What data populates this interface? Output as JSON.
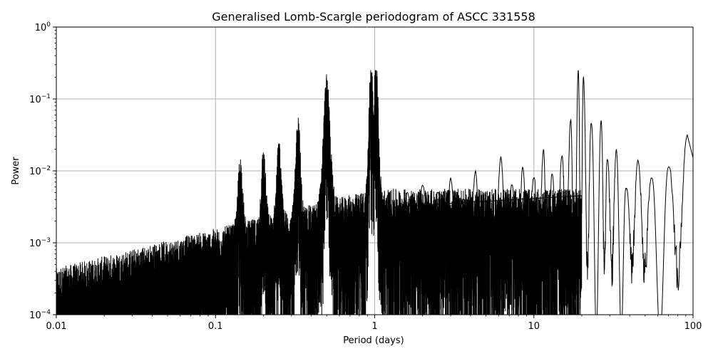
{
  "chart_data": {
    "type": "line",
    "title": "Generalised Lomb-Scargle periodogram of ASCC 331558",
    "xlabel": "Period (days)",
    "ylabel": "Power",
    "xscale": "log",
    "yscale": "log",
    "xlim": [
      0.01,
      100
    ],
    "ylim": [
      0.0001,
      1
    ],
    "grid": true,
    "line_color": "#000000",
    "x_ticks": [
      {
        "value": 0.01,
        "label": "0.01"
      },
      {
        "value": 0.1,
        "label": "0.1"
      },
      {
        "value": 1,
        "label": "1"
      },
      {
        "value": 10,
        "label": "10"
      },
      {
        "value": 100,
        "label": "100"
      }
    ],
    "y_ticks": [
      {
        "value": 0.0001,
        "base": "10",
        "exp": "−4"
      },
      {
        "value": 0.001,
        "base": "10",
        "exp": "−3"
      },
      {
        "value": 0.01,
        "base": "10",
        "exp": "−2"
      },
      {
        "value": 0.1,
        "base": "10",
        "exp": "−1"
      },
      {
        "value": 1,
        "base": "10",
        "exp": "0"
      }
    ],
    "series": [
      {
        "values_note_peaks": [
          {
            "period": 0.5,
            "power": 0.1
          },
          {
            "period": 0.95,
            "power": 0.18
          },
          {
            "period": 1.02,
            "power": 0.22
          },
          {
            "period": 19.0,
            "power": 0.25
          },
          {
            "period": 20.5,
            "power": 0.2
          },
          {
            "period": 26.5,
            "power": 0.05
          },
          {
            "period": 33.0,
            "power": 0.02
          },
          {
            "period": 92.0,
            "power": 0.031
          },
          {
            "period": 100.0,
            "power": 0.015
          }
        ]
      }
    ]
  }
}
